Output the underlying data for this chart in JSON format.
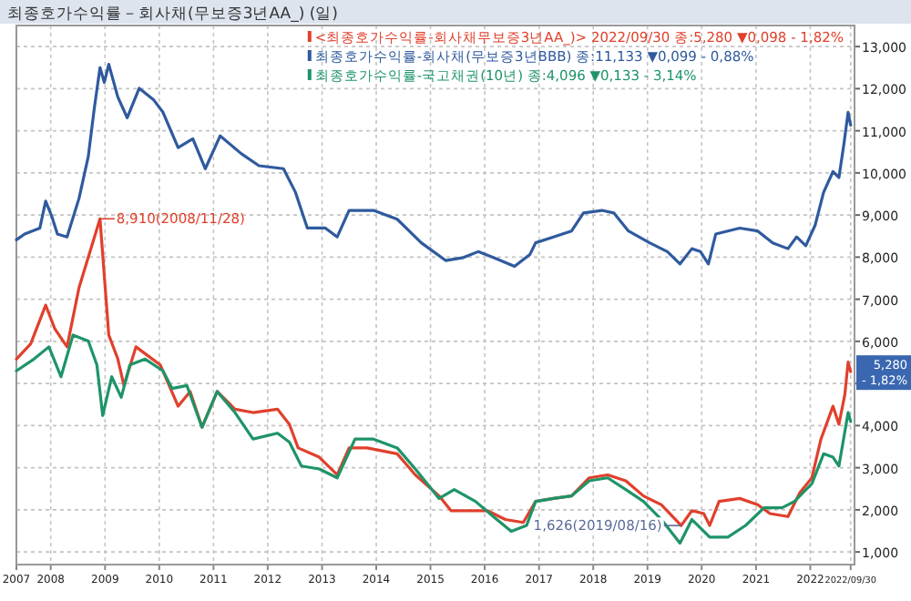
{
  "chart_data": {
    "type": "line",
    "title": "최종호가수익률－회사채(무보증3년AA_) (일)",
    "xlim": [
      "2007-05-15",
      "2022-10-26"
    ],
    "xticks": [
      {
        "value": "2007-05-15",
        "label": "2007"
      },
      {
        "value": "2008-01-01",
        "label": "2008"
      },
      {
        "value": "2009-01-01",
        "label": "2009"
      },
      {
        "value": "2010-01-01",
        "label": "2010"
      },
      {
        "value": "2011-01-01",
        "label": "2011"
      },
      {
        "value": "2012-01-01",
        "label": "2012"
      },
      {
        "value": "2013-01-01",
        "label": "2013"
      },
      {
        "value": "2014-01-01",
        "label": "2014"
      },
      {
        "value": "2015-01-01",
        "label": "2015"
      },
      {
        "value": "2016-01-01",
        "label": "2016"
      },
      {
        "value": "2017-01-01",
        "label": "2017"
      },
      {
        "value": "2018-01-01",
        "label": "2018"
      },
      {
        "value": "2019-01-01",
        "label": "2019"
      },
      {
        "value": "2020-01-01",
        "label": "2020"
      },
      {
        "value": "2021-01-01",
        "label": "2021"
      },
      {
        "value": "2022-01-01",
        "label": "2022"
      },
      {
        "value": "2022-09-30",
        "label": "2022/09/30"
      }
    ],
    "ylim": [
      700,
      13500
    ],
    "yticks": [
      {
        "value": 1000,
        "label": "1,000"
      },
      {
        "value": 2000,
        "label": "2,000"
      },
      {
        "value": 3000,
        "label": "3,000"
      },
      {
        "value": 4000,
        "label": "4,000"
      },
      {
        "value": 5000,
        "label": null
      },
      {
        "value": 6000,
        "label": "6,000"
      },
      {
        "value": 7000,
        "label": "7,000"
      },
      {
        "value": 8000,
        "label": "8,000"
      },
      {
        "value": 9000,
        "label": "9,000"
      },
      {
        "value": 10000,
        "label": "10,000"
      },
      {
        "value": 11000,
        "label": "11,000"
      },
      {
        "value": 12000,
        "label": "12,000"
      },
      {
        "value": 13000,
        "label": "13,000"
      }
    ],
    "grid": true,
    "legend": "top right",
    "series": [
      {
        "name": "<최종호가수익률-회사채무보증3년AA_)> 2022/09/30 종:5,280 ▼0,098 - 1,82%",
        "color": "#e0402c",
        "x": [
          "2007-05-15",
          "2007-08-19",
          "2007-11-28",
          "2008-01-30",
          "2008-04-20",
          "2008-07-10",
          "2008-11-28",
          "2009-01-26",
          "2009-03-28",
          "2009-05-08",
          "2009-07-28",
          "2009-10-16",
          "2010-01-08",
          "2010-05-08",
          "2010-07-28",
          "2010-10-16",
          "2011-01-26",
          "2011-05-26",
          "2011-09-24",
          "2012-03-07",
          "2012-05-26",
          "2012-07-24",
          "2012-12-13",
          "2013-04-13",
          "2013-07-02",
          "2013-10-31",
          "2014-05-22",
          "2014-09-21",
          "2015-02-28",
          "2015-05-19",
          "2015-09-21",
          "2016-01-19",
          "2016-05-19",
          "2016-09-17",
          "2016-12-09",
          "2017-04-08",
          "2017-08-08",
          "2017-12-05",
          "2018-04-08",
          "2018-08-08",
          "2018-12-05",
          "2019-04-05",
          "2019-08-16",
          "2019-10-27",
          "2020-01-15",
          "2020-02-24",
          "2020-04-27",
          "2020-09-13",
          "2021-01-12",
          "2021-04-05",
          "2021-08-04",
          "2021-10-23",
          "2022-01-12",
          "2022-03-14",
          "2022-06-03",
          "2022-07-13",
          "2022-08-22",
          "2022-09-13",
          "2022-09-30"
        ],
        "values": [
          5580,
          5940,
          6860,
          6290,
          5870,
          7280,
          8910,
          6150,
          5580,
          4950,
          5870,
          5660,
          5440,
          4460,
          4810,
          3960,
          4810,
          4390,
          4310,
          4390,
          4030,
          3470,
          3250,
          2830,
          3470,
          3470,
          3330,
          2830,
          2330,
          1980,
          1980,
          1980,
          1770,
          1700,
          2200,
          2270,
          2330,
          2760,
          2830,
          2690,
          2330,
          2120,
          1626,
          1980,
          1910,
          1630,
          2200,
          2270,
          2120,
          1910,
          1840,
          2410,
          2760,
          3680,
          4460,
          4030,
          4740,
          5510,
          5280
        ]
      },
      {
        "name": "최종호가수익률-회사채(무보증3년BBB) 종:11,133 ▼0,099 - 0,88%",
        "color": "#2f5a9e",
        "x": [
          "2007-05-15",
          "2007-07-10",
          "2007-10-20",
          "2007-11-28",
          "2008-01-08",
          "2008-02-15",
          "2008-04-20",
          "2008-07-10",
          "2008-09-10",
          "2008-10-20",
          "2008-11-28",
          "2008-12-27",
          "2009-01-26",
          "2009-03-28",
          "2009-05-30",
          "2009-08-19",
          "2009-11-25",
          "2010-01-26",
          "2010-05-08",
          "2010-08-15",
          "2010-11-07",
          "2011-02-15",
          "2011-07-06",
          "2011-11-03",
          "2012-04-16",
          "2012-07-06",
          "2012-09-24",
          "2013-01-23",
          "2013-04-13",
          "2013-07-02",
          "2013-12-13",
          "2014-05-22",
          "2014-10-31",
          "2015-04-13",
          "2015-08-11",
          "2015-11-18",
          "2016-02-28",
          "2016-07-20",
          "2016-10-31",
          "2016-12-09",
          "2017-04-08",
          "2017-08-08",
          "2017-10-27",
          "2018-02-28",
          "2018-05-19",
          "2018-08-26",
          "2019-01-15",
          "2019-05-15",
          "2019-08-08",
          "2019-10-27",
          "2019-12-24",
          "2020-02-15",
          "2020-04-05",
          "2020-09-13",
          "2021-01-12",
          "2021-04-23",
          "2021-08-04",
          "2021-10-01",
          "2021-12-02",
          "2022-02-03",
          "2022-04-01",
          "2022-06-03",
          "2022-07-13",
          "2022-08-15",
          "2022-09-13",
          "2022-09-30"
        ],
        "values": [
          8410,
          8550,
          8690,
          9330,
          8970,
          8550,
          8480,
          9400,
          10390,
          11520,
          12500,
          12150,
          12580,
          11800,
          11310,
          12010,
          11730,
          11440,
          10600,
          10810,
          10100,
          10880,
          10460,
          10170,
          10100,
          9540,
          8690,
          8690,
          8480,
          9110,
          9110,
          8900,
          8340,
          7920,
          7990,
          8130,
          7990,
          7780,
          8060,
          8340,
          8480,
          8620,
          9050,
          9110,
          9050,
          8620,
          8340,
          8130,
          7840,
          8200,
          8130,
          7840,
          8550,
          8690,
          8620,
          8340,
          8200,
          8480,
          8270,
          8760,
          9540,
          10030,
          9890,
          10670,
          11440,
          11133
        ]
      },
      {
        "name": "최종호가수익률-국고채권(10년) 종:4,096 ▼0,133 - 3,14%",
        "color": "#1e9468",
        "x": [
          "2007-05-15",
          "2007-09-10",
          "2007-12-20",
          "2008-03-10",
          "2008-05-30",
          "2008-09-10",
          "2008-11-07",
          "2008-12-16",
          "2009-02-15",
          "2009-04-20",
          "2009-06-17",
          "2009-09-28",
          "2010-01-26",
          "2010-03-28",
          "2010-07-06",
          "2010-10-16",
          "2011-01-26",
          "2011-05-26",
          "2011-09-24",
          "2012-03-07",
          "2012-05-26",
          "2012-08-15",
          "2012-12-13",
          "2013-04-13",
          "2013-08-11",
          "2013-12-13",
          "2014-05-22",
          "2014-09-21",
          "2015-02-28",
          "2015-06-10",
          "2015-10-31",
          "2016-02-28",
          "2016-06-28",
          "2016-10-09",
          "2016-12-09",
          "2017-04-08",
          "2017-08-08",
          "2017-12-05",
          "2018-04-08",
          "2018-08-08",
          "2018-12-05",
          "2019-04-05",
          "2019-08-08",
          "2019-10-27",
          "2020-02-24",
          "2020-06-25",
          "2020-10-23",
          "2021-02-24",
          "2021-06-25",
          "2021-09-17",
          "2021-11-14",
          "2022-01-12",
          "2022-04-01",
          "2022-06-03",
          "2022-07-13",
          "2022-09-13",
          "2022-09-30"
        ],
        "values": [
          5300,
          5580,
          5870,
          5160,
          6150,
          6010,
          5440,
          4240,
          5160,
          4670,
          5440,
          5580,
          5300,
          4880,
          4950,
          3960,
          4810,
          4310,
          3680,
          3820,
          3610,
          3040,
          2970,
          2760,
          3680,
          3680,
          3470,
          2970,
          2270,
          2480,
          2200,
          1840,
          1490,
          1630,
          2200,
          2270,
          2330,
          2690,
          2760,
          2480,
          2200,
          1770,
          1210,
          1770,
          1350,
          1350,
          1630,
          2050,
          2050,
          2200,
          2410,
          2620,
          3330,
          3250,
          3040,
          4310,
          4096
        ]
      }
    ],
    "annotations": [
      {
        "text": "8,910(2008/11/28)",
        "x": "2008-11-28",
        "y": 8910
      },
      {
        "text": "1,626(2019/08/16)",
        "x": "2019-08-16",
        "y": 1626
      },
      {
        "text": "5,280 - 1,82%",
        "x": "2022-09-30",
        "y": 5280
      }
    ]
  }
}
